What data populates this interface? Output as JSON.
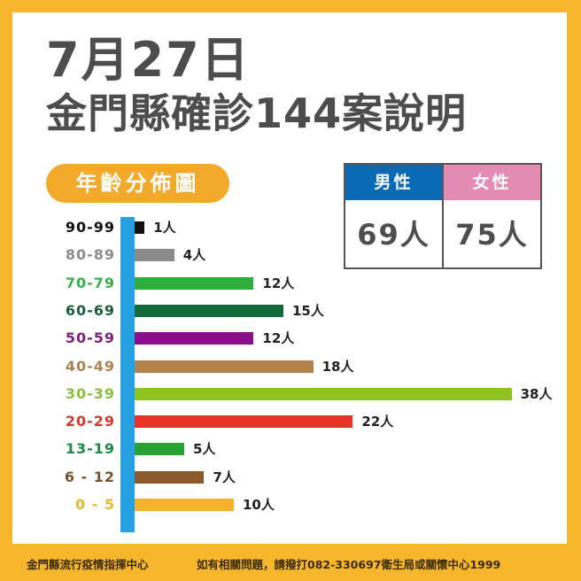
{
  "header": {
    "date": "7月27日",
    "title": "金門縣確診144案說明"
  },
  "section_label": "年齡分佈圖",
  "gender": {
    "male": {
      "label": "男性",
      "value": "69人",
      "color": "#0a6ab5"
    },
    "female": {
      "label": "女性",
      "value": "75人",
      "color": "#e58cb5"
    }
  },
  "chart_data": {
    "type": "bar",
    "orientation": "horizontal",
    "title": "年齡分佈圖",
    "xlabel": "",
    "ylabel": "",
    "unit": "人",
    "categories": [
      "90-99",
      "80-89",
      "70-79",
      "60-69",
      "50-59",
      "40-49",
      "30-39",
      "20-29",
      "13-19",
      "6 - 12",
      "0  -  5"
    ],
    "values": [
      1,
      4,
      12,
      15,
      12,
      18,
      38,
      22,
      5,
      7,
      10
    ],
    "value_labels": [
      "1人",
      "4人",
      "12人",
      "15人",
      "12人",
      "18人",
      "38人",
      "22人",
      "5人",
      "7人",
      "10人"
    ],
    "colors": [
      "#111111",
      "#8c8c8c",
      "#2fae3c",
      "#136b3a",
      "#8a0d8a",
      "#b3824a",
      "#8dc21f",
      "#e63227",
      "#2aa335",
      "#8b5a2b",
      "#f5b22d"
    ],
    "label_colors": [
      "#111111",
      "#8c8c8c",
      "#3aae4a",
      "#1c5e3a",
      "#7d1f7d",
      "#a88451",
      "#8cbf3a",
      "#d0392f",
      "#1e8a4a",
      "#7a5230",
      "#e8b830"
    ],
    "axis_color": "#26a2e0",
    "grid": false,
    "legend": "none",
    "total": 144
  },
  "footer": {
    "left": "金門縣流行疫情指揮中心",
    "right": "如有相關問題，請撥打082-330697衛生局或關懷中心1999"
  }
}
